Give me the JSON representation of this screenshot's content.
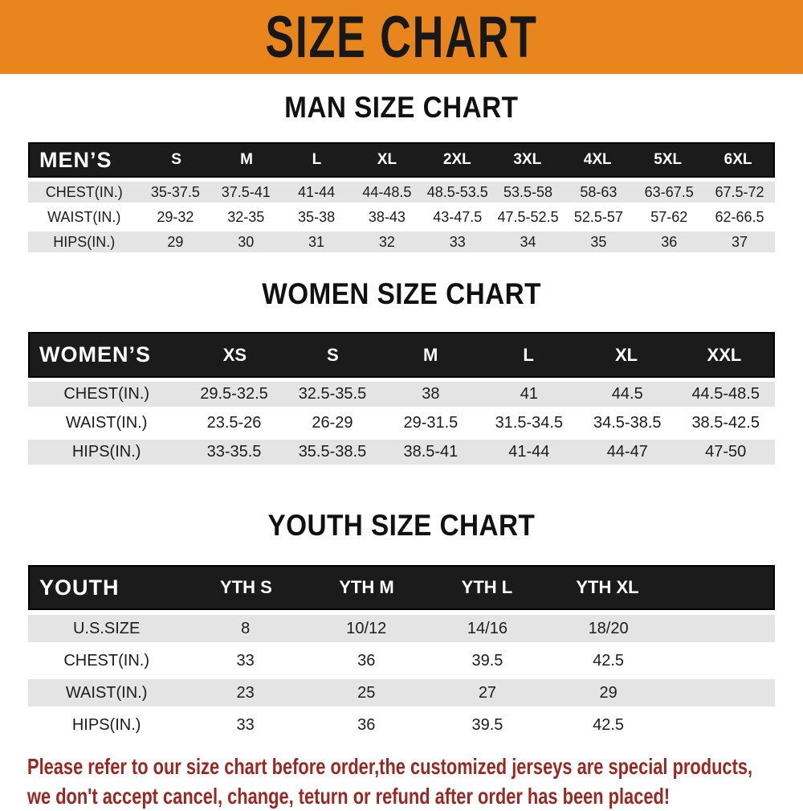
{
  "banner": {
    "title": "SIZE CHART",
    "bg_color": "#E8861D"
  },
  "sections": [
    {
      "key": "mens",
      "heading": "MAN SIZE CHART",
      "header_label": "MEN’S",
      "columns": [
        "S",
        "M",
        "L",
        "XL",
        "2XL",
        "3XL",
        "4XL",
        "5XL",
        "6XL"
      ],
      "rows": [
        {
          "label": "CHEST(IN.)",
          "values": [
            "35-37.5",
            "37.5-41",
            "41-44",
            "44-48.5",
            "48.5-53.5",
            "53.5-58",
            "58-63",
            "63-67.5",
            "67.5-72"
          ]
        },
        {
          "label": "WAIST(IN.)",
          "values": [
            "29-32",
            "32-35",
            "35-38",
            "38-43",
            "43-47.5",
            "47.5-52.5",
            "52.5-57",
            "57-62",
            "62-66.5"
          ]
        },
        {
          "label": "HIPS(IN.)",
          "values": [
            "29",
            "30",
            "31",
            "32",
            "33",
            "34",
            "35",
            "36",
            "37"
          ]
        }
      ]
    },
    {
      "key": "womens",
      "heading": "WOMEN SIZE CHART",
      "header_label": "WOMEN’S",
      "columns": [
        "XS",
        "S",
        "M",
        "L",
        "XL",
        "XXL"
      ],
      "rows": [
        {
          "label": "CHEST(IN.)",
          "values": [
            "29.5-32.5",
            "32.5-35.5",
            "38",
            "41",
            "44.5",
            "44.5-48.5"
          ]
        },
        {
          "label": "WAIST(IN.)",
          "values": [
            "23.5-26",
            "26-29",
            "29-31.5",
            "31.5-34.5",
            "34.5-38.5",
            "38.5-42.5"
          ]
        },
        {
          "label": "HIPS(IN.)",
          "values": [
            "33-35.5",
            "35.5-38.5",
            "38.5-41",
            "41-44",
            "44-47",
            "47-50"
          ]
        }
      ]
    },
    {
      "key": "youth",
      "heading": "YOUTH SIZE CHART",
      "header_label": "YOUTH",
      "columns": [
        "YTH S",
        "YTH M",
        "YTH L",
        "YTH XL"
      ],
      "rows": [
        {
          "label": "U.S.SIZE",
          "values": [
            "8",
            "10/12",
            "14/16",
            "18/20"
          ]
        },
        {
          "label": "CHEST(IN.)",
          "values": [
            "33",
            "36",
            "39.5",
            "42.5"
          ]
        },
        {
          "label": "WAIST(IN.)",
          "values": [
            "23",
            "25",
            "27",
            "29"
          ]
        },
        {
          "label": "HIPS(IN.)",
          "values": [
            "33",
            "36",
            "39.5",
            "42.5"
          ]
        }
      ]
    }
  ],
  "disclaimer": {
    "line1": "Please refer to our size chart before order,the customized jerseys are special products,",
    "line2": "we don't accept cancel, change, teturn or refund after order has been placed!",
    "color": "#9B2820"
  },
  "colors": {
    "banner_bg": "#E8861D",
    "table_header_bg": "#1B1B1B",
    "row_stripe": "#E4E4E4",
    "disclaimer_text": "#9B2820"
  }
}
